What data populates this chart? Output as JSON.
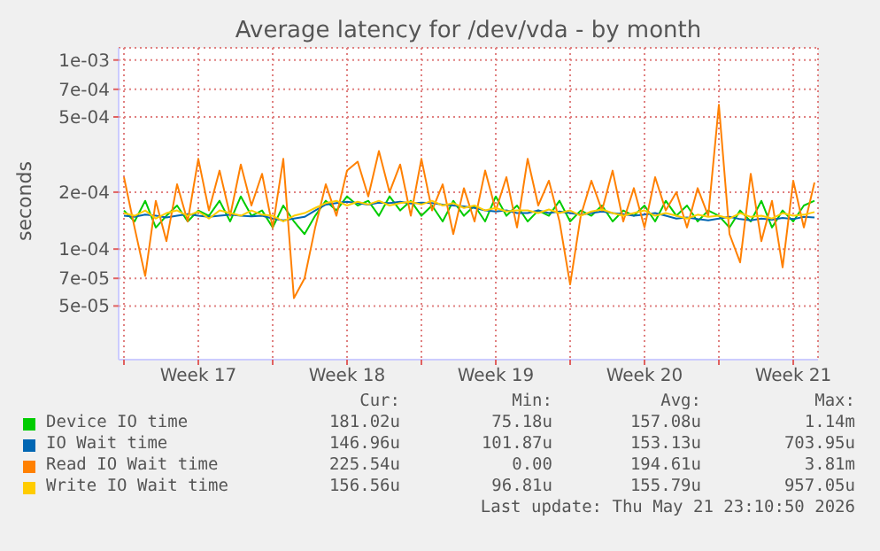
{
  "chart_data": {
    "type": "line",
    "title": "Average latency for /dev/vda - by month",
    "ylabel": "seconds",
    "log": true,
    "grid": true,
    "legend": "bottom",
    "x": [
      "2026-04-20T00:00",
      "2026-04-20T12:00",
      "2026-04-21T00:00",
      "2026-04-21T12:00",
      "2026-04-22T00:00",
      "2026-04-22T12:00",
      "2026-04-23T00:00",
      "2026-04-23T12:00",
      "2026-04-24T00:00",
      "2026-04-24T12:00",
      "2026-04-25T00:00",
      "2026-04-25T12:00",
      "2026-04-26T00:00",
      "2026-04-26T12:00",
      "2026-04-27T00:00",
      "2026-04-27T12:00",
      "2026-04-28T00:00",
      "2026-04-28T12:00",
      "2026-04-29T00:00",
      "2026-04-29T12:00",
      "2026-04-30T00:00",
      "2026-04-30T12:00",
      "2026-05-01T00:00",
      "2026-05-01T12:00",
      "2026-05-02T00:00",
      "2026-05-02T12:00",
      "2026-05-03T00:00",
      "2026-05-03T12:00",
      "2026-05-04T00:00",
      "2026-05-04T12:00",
      "2026-05-05T00:00",
      "2026-05-05T12:00",
      "2026-05-06T00:00",
      "2026-05-06T12:00",
      "2026-05-07T00:00",
      "2026-05-07T12:00",
      "2026-05-08T00:00",
      "2026-05-08T12:00",
      "2026-05-09T00:00",
      "2026-05-09T12:00",
      "2026-05-10T00:00",
      "2026-05-10T12:00",
      "2026-05-11T00:00",
      "2026-05-11T12:00",
      "2026-05-12T00:00",
      "2026-05-12T12:00",
      "2026-05-13T00:00",
      "2026-05-13T12:00",
      "2026-05-14T00:00",
      "2026-05-14T12:00",
      "2026-05-15T00:00",
      "2026-05-15T12:00",
      "2026-05-16T00:00",
      "2026-05-16T12:00",
      "2026-05-17T00:00",
      "2026-05-17T12:00",
      "2026-05-18T00:00",
      "2026-05-18T12:00",
      "2026-05-19T00:00",
      "2026-05-19T12:00",
      "2026-05-20T00:00",
      "2026-05-20T12:00",
      "2026-05-21T00:00",
      "2026-05-21T12:00",
      "2026-05-22T00:00",
      "2026-05-22T12:00"
    ],
    "xlim": [
      "2026-04-19T18:00",
      "2026-05-22T16:00"
    ],
    "xticks": [
      {
        "value": "2026-04-20",
        "label": null
      },
      {
        "value": "2026-04-23T12:00",
        "label": "Week 17"
      },
      {
        "value": "2026-04-27",
        "label": null
      },
      {
        "value": "2026-04-30T12:00",
        "label": "Week 18"
      },
      {
        "value": "2026-05-04",
        "label": null
      },
      {
        "value": "2026-05-07T12:00",
        "label": "Week 19"
      },
      {
        "value": "2026-05-11",
        "label": null
      },
      {
        "value": "2026-05-14T12:00",
        "label": "Week 20"
      },
      {
        "value": "2026-05-18",
        "label": null
      },
      {
        "value": "2026-05-21T12:00",
        "label": "Week 21"
      }
    ],
    "ylim": [
      2.6e-05,
      0.00116
    ],
    "yticks": [
      {
        "value": 5e-05,
        "label": "5e-05"
      },
      {
        "value": 7e-05,
        "label": "7e-05"
      },
      {
        "value": 0.0001,
        "label": "1e-04"
      },
      {
        "value": 0.0002,
        "label": "2e-04"
      },
      {
        "value": 0.0005,
        "label": "5e-04"
      },
      {
        "value": 0.0007,
        "label": "7e-04"
      },
      {
        "value": 0.001,
        "label": "1e-03"
      }
    ],
    "series": [
      {
        "name": "Device IO time",
        "color": "#00cc00",
        "values": [
          0.00016,
          0.00014,
          0.00018,
          0.00013,
          0.00015,
          0.00017,
          0.00014,
          0.00016,
          0.00015,
          0.00018,
          0.00014,
          0.00019,
          0.00015,
          0.00016,
          0.00013,
          0.00017,
          0.00014,
          0.00012,
          0.00015,
          0.00018,
          0.00016,
          0.00019,
          0.00017,
          0.00018,
          0.00015,
          0.00019,
          0.00016,
          0.00018,
          0.00015,
          0.00017,
          0.00014,
          0.00018,
          0.00015,
          0.00017,
          0.00014,
          0.00019,
          0.00015,
          0.00017,
          0.00014,
          0.00016,
          0.00015,
          0.00018,
          0.00014,
          0.00016,
          0.00015,
          0.00017,
          0.00014,
          0.00016,
          0.00015,
          0.00017,
          0.00014,
          0.00018,
          0.00015,
          0.00017,
          0.00014,
          0.00016,
          0.00015,
          0.00013,
          0.00016,
          0.00014,
          0.00018,
          0.00013,
          0.00016,
          0.00014,
          0.00017,
          0.00018
        ]
      },
      {
        "name": "IO Wait time",
        "color": "#0066b3",
        "values": [
          0.00015,
          0.000148,
          0.000152,
          0.00015,
          0.000147,
          0.00015,
          0.000153,
          0.00015,
          0.000148,
          0.00015,
          0.000152,
          0.00015,
          0.000149,
          0.00015,
          0.000145,
          0.000142,
          0.000145,
          0.000148,
          0.00016,
          0.000172,
          0.000175,
          0.000178,
          0.000175,
          0.000172,
          0.000176,
          0.000175,
          0.000178,
          0.000174,
          0.000176,
          0.000175,
          0.000172,
          0.00017,
          0.000168,
          0.000165,
          0.00016,
          0.000158,
          0.00016,
          0.000155,
          0.000155,
          0.00016,
          0.000155,
          0.000158,
          0.000155,
          0.000152,
          0.000155,
          0.000158,
          0.000155,
          0.000153,
          0.00015,
          0.000152,
          0.000155,
          0.00015,
          0.000145,
          0.000147,
          0.000144,
          0.000142,
          0.000145,
          0.000148,
          0.000144,
          0.000142,
          0.000145,
          0.000143,
          0.000146,
          0.000144,
          0.000148,
          0.000147
        ]
      },
      {
        "name": "Read IO Wait time",
        "color": "#ff8000",
        "values": [
          0.00024,
          0.00013,
          7.2e-05,
          0.00018,
          0.00011,
          0.00022,
          0.00014,
          0.0003,
          0.00016,
          0.00026,
          0.00015,
          0.00028,
          0.00017,
          0.00025,
          0.00013,
          0.0003,
          5.5e-05,
          7e-05,
          0.00013,
          0.00022,
          0.00015,
          0.00026,
          0.00029,
          0.00019,
          0.00033,
          0.0002,
          0.00028,
          0.00015,
          0.0003,
          0.00016,
          0.00022,
          0.00012,
          0.00021,
          0.00014,
          0.00026,
          0.00016,
          0.00024,
          0.00013,
          0.0003,
          0.00017,
          0.00023,
          0.00014,
          6.5e-05,
          0.00015,
          0.00023,
          0.00016,
          0.00026,
          0.00014,
          0.00021,
          0.00013,
          0.00024,
          0.00016,
          0.0002,
          0.00013,
          0.00021,
          0.00015,
          0.00058,
          0.00012,
          8.5e-05,
          0.00025,
          0.00011,
          0.00018,
          8e-05,
          0.00023,
          0.00013,
          0.000225
        ]
      },
      {
        "name": "Write IO Wait time",
        "color": "#ffcc00",
        "values": [
          0.000155,
          0.00015,
          0.00016,
          0.000145,
          0.000155,
          0.00016,
          0.00015,
          0.000158,
          0.000145,
          0.00016,
          0.000155,
          0.00015,
          0.00016,
          0.000152,
          0.00015,
          0.00014,
          0.00015,
          0.000155,
          0.000165,
          0.000175,
          0.00018,
          0.00017,
          0.000178,
          0.000172,
          0.00018,
          0.00017,
          0.000175,
          0.000178,
          0.000172,
          0.00018,
          0.00017,
          0.000175,
          0.000165,
          0.00017,
          0.00016,
          0.000165,
          0.000158,
          0.00016,
          0.00016,
          0.000155,
          0.000162,
          0.000155,
          0.00016,
          0.00015,
          0.000158,
          0.000162,
          0.000155,
          0.00015,
          0.000155,
          0.00016,
          0.00015,
          0.000155,
          0.00015,
          0.000145,
          0.000152,
          0.000148,
          0.00015,
          0.000145,
          0.000155,
          0.000148,
          0.00015,
          0.000145,
          0.000155,
          0.00015,
          0.000152,
          0.000157
        ]
      }
    ],
    "annotations": [
      "Cur:",
      "Min:",
      "Avg:",
      "Max:",
      "181.02u",
      "75.18u",
      "157.08u",
      "1.14m",
      "146.96u",
      "101.87u",
      "153.13u",
      "703.95u",
      "225.54u",
      "0.00",
      "194.61u",
      "3.81m",
      "156.56u",
      "96.81u",
      "155.79u",
      "957.05u",
      "Last update: Thu May 21 23:10:50 2026"
    ]
  }
}
